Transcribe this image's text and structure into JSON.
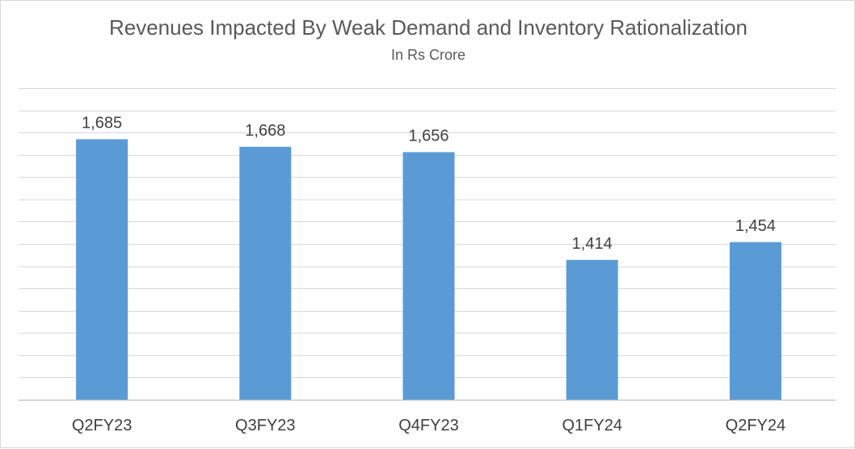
{
  "chart_data": {
    "type": "bar",
    "title": "Revenues Impacted By Weak Demand and Inventory Rationalization",
    "subtitle": "In Rs Crore",
    "categories": [
      "Q2FY23",
      "Q3FY23",
      "Q4FY23",
      "Q1FY24",
      "Q2FY24"
    ],
    "values": [
      1685,
      1668,
      1656,
      1414,
      1454
    ],
    "value_labels": [
      "1,685",
      "1,668",
      "1,656",
      "1,414",
      "1,454"
    ],
    "ylim": [
      1100,
      1800
    ],
    "y_gridline_step": 50,
    "grid": true,
    "legend": "none",
    "bar_color": "#5b9bd5"
  }
}
